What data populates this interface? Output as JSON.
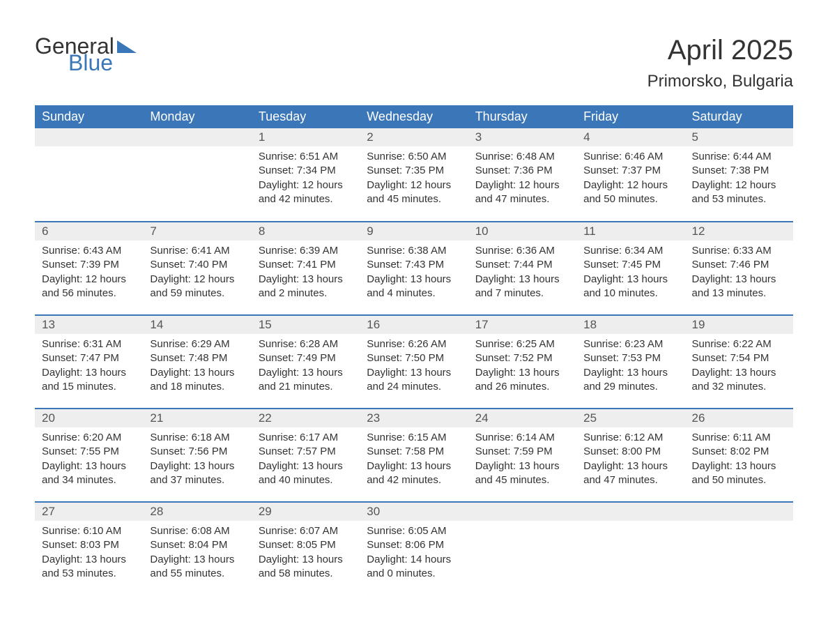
{
  "logo": {
    "text_general": "General",
    "text_blue": "Blue",
    "general_color": "#333333",
    "blue_color": "#3a76b8"
  },
  "header": {
    "month_title": "April 2025",
    "location": "Primorsko, Bulgaria"
  },
  "colors": {
    "header_bg": "#3a76b8",
    "header_text": "#ffffff",
    "day_number_bg": "#eeeeee",
    "day_number_text": "#555555",
    "body_text": "#333333",
    "row_border": "#3a76b8",
    "background": "#ffffff"
  },
  "typography": {
    "month_title_fontsize": 40,
    "location_fontsize": 24,
    "day_header_fontsize": 18,
    "day_number_fontsize": 17,
    "details_fontsize": 15,
    "logo_fontsize": 32
  },
  "day_headers": [
    "Sunday",
    "Monday",
    "Tuesday",
    "Wednesday",
    "Thursday",
    "Friday",
    "Saturday"
  ],
  "weeks": [
    [
      {
        "day": "",
        "sunrise": "",
        "sunset": "",
        "daylight": ""
      },
      {
        "day": "",
        "sunrise": "",
        "sunset": "",
        "daylight": ""
      },
      {
        "day": "1",
        "sunrise": "Sunrise: 6:51 AM",
        "sunset": "Sunset: 7:34 PM",
        "daylight": "Daylight: 12 hours and 42 minutes."
      },
      {
        "day": "2",
        "sunrise": "Sunrise: 6:50 AM",
        "sunset": "Sunset: 7:35 PM",
        "daylight": "Daylight: 12 hours and 45 minutes."
      },
      {
        "day": "3",
        "sunrise": "Sunrise: 6:48 AM",
        "sunset": "Sunset: 7:36 PM",
        "daylight": "Daylight: 12 hours and 47 minutes."
      },
      {
        "day": "4",
        "sunrise": "Sunrise: 6:46 AM",
        "sunset": "Sunset: 7:37 PM",
        "daylight": "Daylight: 12 hours and 50 minutes."
      },
      {
        "day": "5",
        "sunrise": "Sunrise: 6:44 AM",
        "sunset": "Sunset: 7:38 PM",
        "daylight": "Daylight: 12 hours and 53 minutes."
      }
    ],
    [
      {
        "day": "6",
        "sunrise": "Sunrise: 6:43 AM",
        "sunset": "Sunset: 7:39 PM",
        "daylight": "Daylight: 12 hours and 56 minutes."
      },
      {
        "day": "7",
        "sunrise": "Sunrise: 6:41 AM",
        "sunset": "Sunset: 7:40 PM",
        "daylight": "Daylight: 12 hours and 59 minutes."
      },
      {
        "day": "8",
        "sunrise": "Sunrise: 6:39 AM",
        "sunset": "Sunset: 7:41 PM",
        "daylight": "Daylight: 13 hours and 2 minutes."
      },
      {
        "day": "9",
        "sunrise": "Sunrise: 6:38 AM",
        "sunset": "Sunset: 7:43 PM",
        "daylight": "Daylight: 13 hours and 4 minutes."
      },
      {
        "day": "10",
        "sunrise": "Sunrise: 6:36 AM",
        "sunset": "Sunset: 7:44 PM",
        "daylight": "Daylight: 13 hours and 7 minutes."
      },
      {
        "day": "11",
        "sunrise": "Sunrise: 6:34 AM",
        "sunset": "Sunset: 7:45 PM",
        "daylight": "Daylight: 13 hours and 10 minutes."
      },
      {
        "day": "12",
        "sunrise": "Sunrise: 6:33 AM",
        "sunset": "Sunset: 7:46 PM",
        "daylight": "Daylight: 13 hours and 13 minutes."
      }
    ],
    [
      {
        "day": "13",
        "sunrise": "Sunrise: 6:31 AM",
        "sunset": "Sunset: 7:47 PM",
        "daylight": "Daylight: 13 hours and 15 minutes."
      },
      {
        "day": "14",
        "sunrise": "Sunrise: 6:29 AM",
        "sunset": "Sunset: 7:48 PM",
        "daylight": "Daylight: 13 hours and 18 minutes."
      },
      {
        "day": "15",
        "sunrise": "Sunrise: 6:28 AM",
        "sunset": "Sunset: 7:49 PM",
        "daylight": "Daylight: 13 hours and 21 minutes."
      },
      {
        "day": "16",
        "sunrise": "Sunrise: 6:26 AM",
        "sunset": "Sunset: 7:50 PM",
        "daylight": "Daylight: 13 hours and 24 minutes."
      },
      {
        "day": "17",
        "sunrise": "Sunrise: 6:25 AM",
        "sunset": "Sunset: 7:52 PM",
        "daylight": "Daylight: 13 hours and 26 minutes."
      },
      {
        "day": "18",
        "sunrise": "Sunrise: 6:23 AM",
        "sunset": "Sunset: 7:53 PM",
        "daylight": "Daylight: 13 hours and 29 minutes."
      },
      {
        "day": "19",
        "sunrise": "Sunrise: 6:22 AM",
        "sunset": "Sunset: 7:54 PM",
        "daylight": "Daylight: 13 hours and 32 minutes."
      }
    ],
    [
      {
        "day": "20",
        "sunrise": "Sunrise: 6:20 AM",
        "sunset": "Sunset: 7:55 PM",
        "daylight": "Daylight: 13 hours and 34 minutes."
      },
      {
        "day": "21",
        "sunrise": "Sunrise: 6:18 AM",
        "sunset": "Sunset: 7:56 PM",
        "daylight": "Daylight: 13 hours and 37 minutes."
      },
      {
        "day": "22",
        "sunrise": "Sunrise: 6:17 AM",
        "sunset": "Sunset: 7:57 PM",
        "daylight": "Daylight: 13 hours and 40 minutes."
      },
      {
        "day": "23",
        "sunrise": "Sunrise: 6:15 AM",
        "sunset": "Sunset: 7:58 PM",
        "daylight": "Daylight: 13 hours and 42 minutes."
      },
      {
        "day": "24",
        "sunrise": "Sunrise: 6:14 AM",
        "sunset": "Sunset: 7:59 PM",
        "daylight": "Daylight: 13 hours and 45 minutes."
      },
      {
        "day": "25",
        "sunrise": "Sunrise: 6:12 AM",
        "sunset": "Sunset: 8:00 PM",
        "daylight": "Daylight: 13 hours and 47 minutes."
      },
      {
        "day": "26",
        "sunrise": "Sunrise: 6:11 AM",
        "sunset": "Sunset: 8:02 PM",
        "daylight": "Daylight: 13 hours and 50 minutes."
      }
    ],
    [
      {
        "day": "27",
        "sunrise": "Sunrise: 6:10 AM",
        "sunset": "Sunset: 8:03 PM",
        "daylight": "Daylight: 13 hours and 53 minutes."
      },
      {
        "day": "28",
        "sunrise": "Sunrise: 6:08 AM",
        "sunset": "Sunset: 8:04 PM",
        "daylight": "Daylight: 13 hours and 55 minutes."
      },
      {
        "day": "29",
        "sunrise": "Sunrise: 6:07 AM",
        "sunset": "Sunset: 8:05 PM",
        "daylight": "Daylight: 13 hours and 58 minutes."
      },
      {
        "day": "30",
        "sunrise": "Sunrise: 6:05 AM",
        "sunset": "Sunset: 8:06 PM",
        "daylight": "Daylight: 14 hours and 0 minutes."
      },
      {
        "day": "",
        "sunrise": "",
        "sunset": "",
        "daylight": ""
      },
      {
        "day": "",
        "sunrise": "",
        "sunset": "",
        "daylight": ""
      },
      {
        "day": "",
        "sunrise": "",
        "sunset": "",
        "daylight": ""
      }
    ]
  ]
}
